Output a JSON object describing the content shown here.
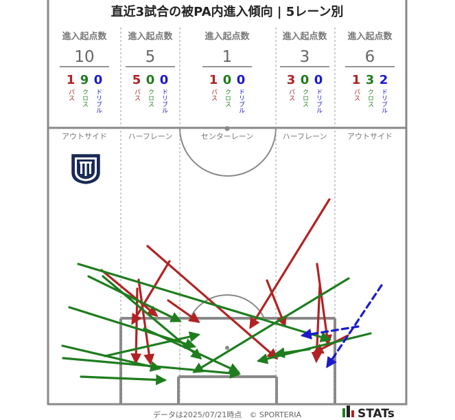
{
  "title": "直近3試合の被PA内進入傾向 | 5レーン別",
  "header_label": "進入起点数",
  "type_labels": {
    "pass": "パス",
    "cross": "クロス",
    "dribble": "ドリブル"
  },
  "colors": {
    "pass": "#b22222",
    "cross": "#1e7d1e",
    "dribble": "#1a1acc",
    "total": "#666666",
    "lines": "#888888"
  },
  "lanes": [
    {
      "name": "アウトサイド",
      "total": "10",
      "pass": "1",
      "cross": "9",
      "dribble": "0"
    },
    {
      "name": "ハーフレーン",
      "total": "5",
      "pass": "5",
      "cross": "0",
      "dribble": "0"
    },
    {
      "name": "センターレーン",
      "total": "1",
      "pass": "1",
      "cross": "0",
      "dribble": "0"
    },
    {
      "name": "ハーフレーン",
      "total": "3",
      "pass": "3",
      "cross": "0",
      "dribble": "0"
    },
    {
      "name": "アウトサイド",
      "total": "6",
      "pass": "1",
      "cross": "3",
      "dribble": "2"
    }
  ],
  "footer": {
    "note": "データは2025/07/21時点　© SPORTERIA",
    "brand": "STATs"
  },
  "chart_data": {
    "type": "arrows",
    "title": "直近3試合の被PA内進入傾向 | 5レーン別",
    "arrows": [
      {
        "type": "pass",
        "from": [
          215,
          358
        ],
        "to": [
          403,
          521
        ]
      },
      {
        "type": "pass",
        "from": [
          480,
          290
        ],
        "to": [
          365,
          476
        ]
      },
      {
        "type": "pass",
        "from": [
          247,
          380
        ],
        "to": [
          193,
          470
        ]
      },
      {
        "type": "pass",
        "from": [
          202,
          407
        ],
        "to": [
          219,
          528
        ]
      },
      {
        "type": "pass",
        "from": [
          200,
          420
        ],
        "to": [
          198,
          527
        ]
      },
      {
        "type": "pass",
        "from": [
          148,
          393
        ],
        "to": [
          228,
          459
        ]
      },
      {
        "type": "pass",
        "from": [
          245,
          437
        ],
        "to": [
          289,
          468
        ]
      },
      {
        "type": "pass",
        "from": [
          389,
          408
        ],
        "to": [
          415,
          473
        ]
      },
      {
        "type": "pass",
        "from": [
          462,
          384
        ],
        "to": [
          478,
          500
        ]
      },
      {
        "type": "pass",
        "from": [
          466,
          415
        ],
        "to": [
          461,
          525
        ]
      },
      {
        "type": "pass",
        "from": [
          507,
          488
        ],
        "to": [
          458,
          513
        ]
      },
      {
        "type": "cross",
        "from": [
          114,
          384
        ],
        "to": [
          480,
          494
        ]
      },
      {
        "type": "cross",
        "from": [
          150,
          402
        ],
        "to": [
          292,
          521
        ]
      },
      {
        "type": "cross",
        "from": [
          129,
          402
        ],
        "to": [
          262,
          467
        ]
      },
      {
        "type": "cross",
        "from": [
          101,
          447
        ],
        "to": [
          283,
          504
        ]
      },
      {
        "type": "cross",
        "from": [
          91,
          503
        ],
        "to": [
          232,
          536
        ]
      },
      {
        "type": "cross",
        "from": [
          92,
          521
        ],
        "to": [
          348,
          544
        ]
      },
      {
        "type": "cross",
        "from": [
          153,
          518
        ],
        "to": [
          289,
          487
        ]
      },
      {
        "type": "cross",
        "from": [
          118,
          548
        ],
        "to": [
          240,
          553
        ]
      },
      {
        "type": "cross",
        "from": [
          210,
          478
        ],
        "to": [
          347,
          541
        ]
      },
      {
        "type": "cross",
        "from": [
          508,
          405
        ],
        "to": [
          283,
          541
        ]
      },
      {
        "type": "cross",
        "from": [
          540,
          485
        ],
        "to": [
          377,
          525
        ]
      },
      {
        "type": "cross",
        "from": [
          451,
          508
        ],
        "to": [
          402,
          515
        ]
      },
      {
        "type": "dribble",
        "from": [
          556,
          415
        ],
        "to": [
          477,
          533
        ]
      },
      {
        "type": "dribble",
        "from": [
          522,
          475
        ],
        "to": [
          441,
          488
        ]
      }
    ]
  }
}
